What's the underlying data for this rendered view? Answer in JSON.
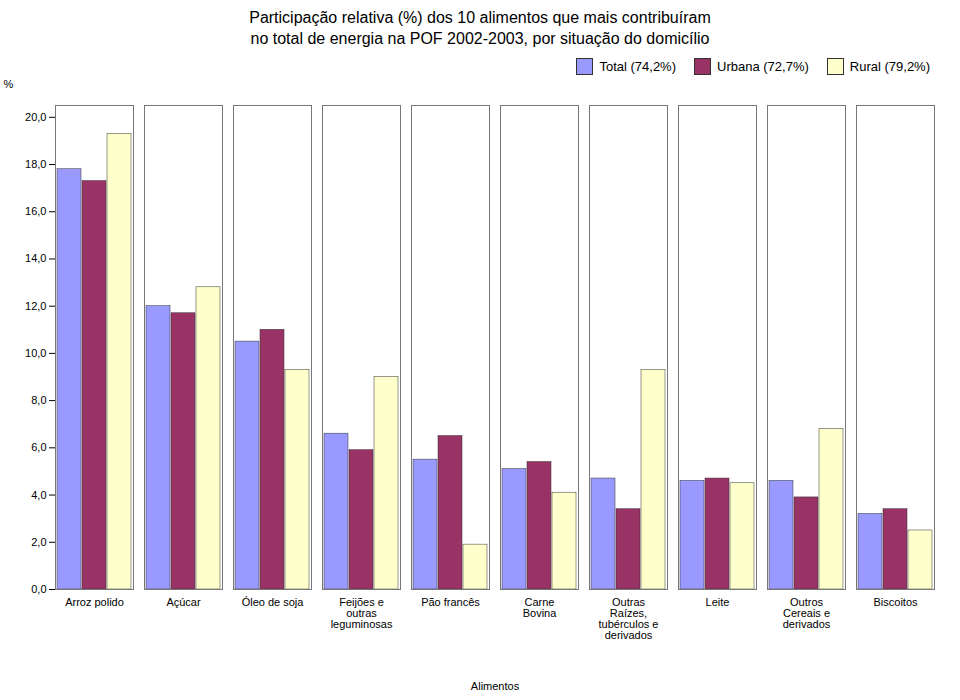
{
  "chart_data": {
    "type": "bar",
    "title": "Participação relativa (%) dos 10 alimentos que mais contribuíram\nno total de energia na POF 2002-2003, por situação do domicílio",
    "categories": [
      "Arroz polido",
      "Açúcar",
      "Óleo de soja",
      "Feijões e\noutras\nleguminosas",
      "Pão francês",
      "Carne\nBovina",
      "Outras\nRaízes,\ntubérculos e\nderivados",
      "Leite",
      "Outros\nCereais e\nderivados",
      "Biscoitos"
    ],
    "series": [
      {
        "name": "Total (74,2%)",
        "color": "#9999FF",
        "values": [
          17.8,
          12.0,
          10.5,
          6.6,
          5.5,
          5.1,
          4.7,
          4.6,
          4.6,
          3.2
        ]
      },
      {
        "name": "Urbana  (72,7%)",
        "color": "#993366",
        "values": [
          17.3,
          11.7,
          11.0,
          5.9,
          6.5,
          5.4,
          3.4,
          4.7,
          3.9,
          3.4
        ]
      },
      {
        "name": "Rural (79,2%)",
        "color": "#FFFFCC",
        "values": [
          19.3,
          12.8,
          9.3,
          9.0,
          1.9,
          4.1,
          9.3,
          4.5,
          6.8,
          2.5
        ]
      }
    ],
    "x_label": "Alimentos",
    "y_label": "%",
    "ylim": [
      0,
      20.5
    ],
    "yticks": [
      {
        "value": 0.0,
        "label": "0,0"
      },
      {
        "value": 2.0,
        "label": "2,0"
      },
      {
        "value": 4.0,
        "label": "4,0"
      },
      {
        "value": 6.0,
        "label": "6,0"
      },
      {
        "value": 8.0,
        "label": "8,0"
      },
      {
        "value": 10.0,
        "label": "10,0"
      },
      {
        "value": 12.0,
        "label": "12,0"
      },
      {
        "value": 14.0,
        "label": "14,0"
      },
      {
        "value": 16.0,
        "label": "16,0"
      },
      {
        "value": 18.0,
        "label": "18,0"
      },
      {
        "value": 20.0,
        "label": "20,0"
      }
    ],
    "grid": false,
    "legend": "upper right"
  }
}
